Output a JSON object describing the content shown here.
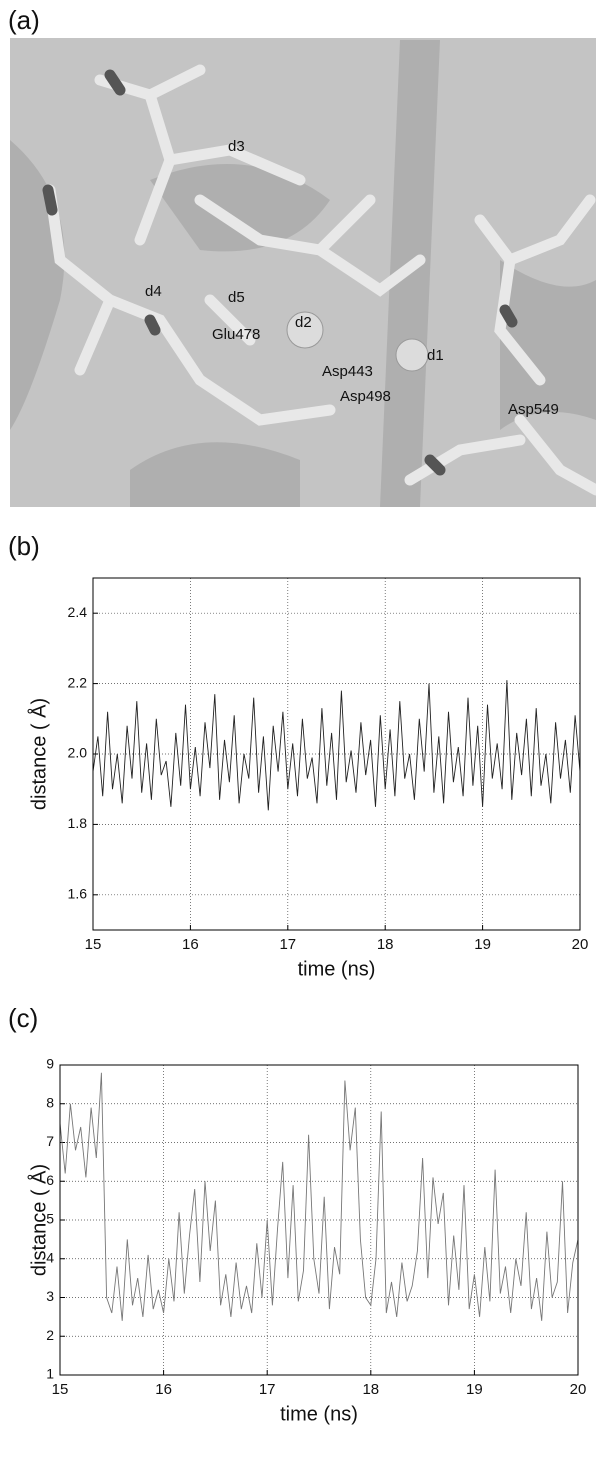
{
  "panel_labels": [
    "(a)",
    "(b)",
    "(c)"
  ],
  "molecule_labels": [
    "d3",
    "d4",
    "d5",
    "d2",
    "d1",
    "Glu478",
    "Asp443",
    "Asp498",
    "Asp549"
  ],
  "chart_data": [
    {
      "type": "line",
      "xlabel": "time (ns)",
      "ylabel": "distance ( Å)",
      "color": "#222222",
      "grid": true,
      "xlim": [
        15,
        20
      ],
      "ylim": [
        1.5,
        2.5
      ],
      "xticks": [
        15,
        16,
        17,
        18,
        19,
        20
      ],
      "yticks": [
        1.6,
        1.8,
        {
          "value": 2,
          "label": "2.0"
        },
        2.2,
        2.4
      ],
      "x": [
        15,
        15.05,
        15.1,
        15.15,
        15.2,
        15.25,
        15.3,
        15.35,
        15.4,
        15.45,
        15.5,
        15.55,
        15.6,
        15.65,
        15.7,
        15.75,
        15.8,
        15.85,
        15.9,
        15.95,
        16,
        16.05,
        16.1,
        16.15,
        16.2,
        16.25,
        16.3,
        16.35,
        16.4,
        16.45,
        16.5,
        16.55,
        16.6,
        16.65,
        16.7,
        16.75,
        16.8,
        16.85,
        16.9,
        16.95,
        17,
        17.05,
        17.1,
        17.15,
        17.2,
        17.25,
        17.3,
        17.35,
        17.4,
        17.45,
        17.5,
        17.55,
        17.6,
        17.65,
        17.7,
        17.75,
        17.8,
        17.85,
        17.9,
        17.95,
        18,
        18.05,
        18.1,
        18.15,
        18.2,
        18.25,
        18.3,
        18.35,
        18.4,
        18.45,
        18.5,
        18.55,
        18.6,
        18.65,
        18.7,
        18.75,
        18.8,
        18.85,
        18.9,
        18.95,
        19,
        19.05,
        19.1,
        19.15,
        19.2,
        19.25,
        19.3,
        19.35,
        19.4,
        19.45,
        19.5,
        19.55,
        19.6,
        19.65,
        19.7,
        19.75,
        19.8,
        19.85,
        19.9,
        19.95,
        20
      ],
      "values": [
        1.95,
        2.05,
        1.88,
        2.12,
        1.9,
        2.0,
        1.86,
        2.08,
        1.93,
        2.15,
        1.89,
        2.03,
        1.87,
        2.1,
        1.94,
        1.98,
        1.85,
        2.06,
        1.91,
        2.14,
        1.9,
        2.02,
        1.88,
        2.09,
        1.96,
        2.17,
        1.87,
        2.04,
        1.92,
        2.11,
        1.86,
        2.0,
        1.93,
        2.16,
        1.89,
        2.05,
        1.84,
        2.08,
        1.95,
        2.12,
        1.9,
        2.03,
        1.88,
        2.1,
        1.93,
        1.99,
        1.86,
        2.13,
        1.91,
        2.06,
        1.87,
        2.18,
        1.92,
        2.01,
        1.89,
        2.09,
        1.94,
        2.04,
        1.85,
        2.11,
        1.9,
        2.07,
        1.88,
        2.15,
        1.93,
        2.0,
        1.87,
        2.1,
        1.95,
        2.2,
        1.89,
        2.05,
        1.86,
        2.12,
        1.92,
        2.02,
        1.88,
        2.16,
        1.91,
        2.08,
        1.85,
        2.14,
        1.93,
        2.03,
        1.9,
        2.21,
        1.87,
        2.06,
        1.94,
        2.1,
        1.88,
        2.13,
        1.91,
        2.0,
        1.86,
        2.09,
        1.93,
        2.04,
        1.89,
        2.11,
        1.95
      ]
    },
    {
      "type": "line",
      "xlabel": "time (ns)",
      "ylabel": "distance ( Å)",
      "color": "#777777",
      "grid": true,
      "xlim": [
        15,
        20
      ],
      "ylim": [
        1,
        9
      ],
      "xticks": [
        15,
        16,
        17,
        18,
        19,
        20
      ],
      "yticks": [
        1,
        2,
        3,
        4,
        5,
        6,
        7,
        8,
        9
      ],
      "x": [
        15,
        15.05,
        15.1,
        15.15,
        15.2,
        15.25,
        15.3,
        15.35,
        15.4,
        15.45,
        15.5,
        15.55,
        15.6,
        15.65,
        15.7,
        15.75,
        15.8,
        15.85,
        15.9,
        15.95,
        16,
        16.05,
        16.1,
        16.15,
        16.2,
        16.25,
        16.3,
        16.35,
        16.4,
        16.45,
        16.5,
        16.55,
        16.6,
        16.65,
        16.7,
        16.75,
        16.8,
        16.85,
        16.9,
        16.95,
        17,
        17.05,
        17.1,
        17.15,
        17.2,
        17.25,
        17.3,
        17.35,
        17.4,
        17.45,
        17.5,
        17.55,
        17.6,
        17.65,
        17.7,
        17.75,
        17.8,
        17.85,
        17.9,
        17.95,
        18,
        18.05,
        18.1,
        18.15,
        18.2,
        18.25,
        18.3,
        18.35,
        18.4,
        18.45,
        18.5,
        18.55,
        18.6,
        18.65,
        18.7,
        18.75,
        18.8,
        18.85,
        18.9,
        18.95,
        19,
        19.05,
        19.1,
        19.15,
        19.2,
        19.25,
        19.3,
        19.35,
        19.4,
        19.45,
        19.5,
        19.55,
        19.6,
        19.65,
        19.7,
        19.75,
        19.8,
        19.85,
        19.9,
        19.95,
        20
      ],
      "values": [
        7.5,
        6.2,
        8.0,
        6.8,
        7.4,
        6.1,
        7.9,
        6.6,
        8.8,
        3.0,
        2.6,
        3.8,
        2.4,
        4.5,
        2.8,
        3.5,
        2.5,
        4.1,
        2.7,
        3.2,
        2.6,
        4.0,
        2.9,
        5.2,
        3.1,
        4.6,
        5.8,
        3.4,
        6.0,
        4.2,
        5.5,
        2.8,
        3.6,
        2.5,
        3.9,
        2.7,
        3.3,
        2.6,
        4.4,
        3.0,
        5.0,
        2.8,
        4.8,
        6.5,
        3.5,
        5.9,
        2.9,
        3.7,
        7.2,
        4.0,
        3.1,
        5.6,
        2.7,
        4.3,
        3.6,
        8.6,
        6.8,
        7.9,
        4.5,
        3.0,
        2.8,
        4.0,
        7.8,
        2.6,
        3.4,
        2.5,
        3.9,
        2.9,
        3.3,
        4.2,
        6.6,
        3.5,
        6.1,
        4.9,
        5.7,
        2.8,
        4.6,
        3.2,
        5.9,
        2.7,
        3.6,
        2.5,
        4.3,
        2.9,
        6.3,
        3.1,
        3.8,
        2.6,
        4.0,
        3.3,
        5.2,
        2.7,
        3.5,
        2.4,
        4.7,
        3.0,
        3.4,
        6.0,
        2.6,
        3.9,
        4.5
      ]
    }
  ]
}
